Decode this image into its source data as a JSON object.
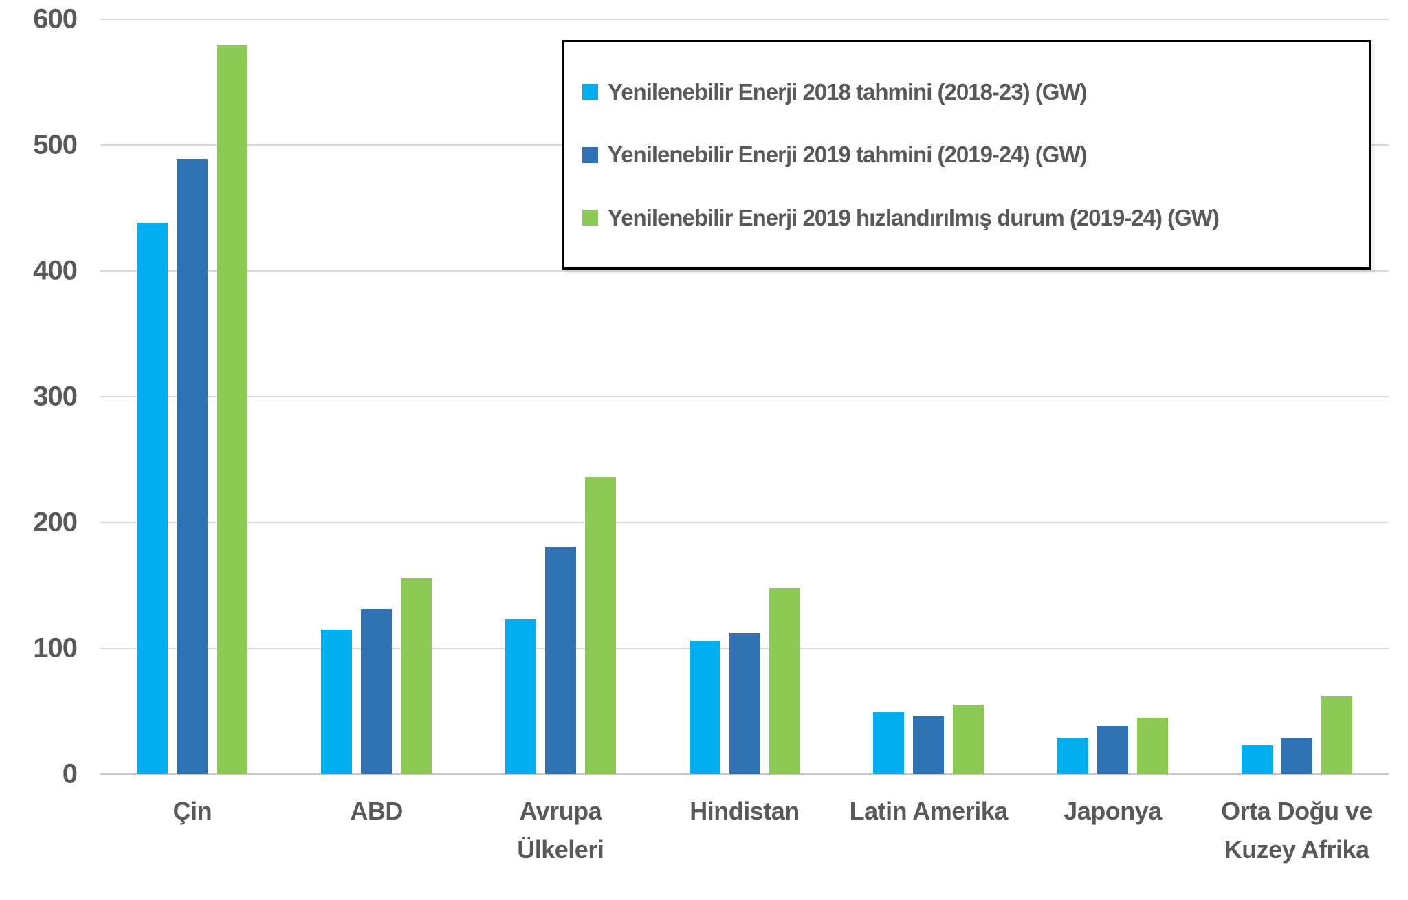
{
  "chart_data": {
    "type": "bar",
    "title": "",
    "xlabel": "",
    "ylabel": "",
    "categories": [
      "Çin",
      "ABD",
      "Avrupa Ülkeleri",
      "Hindistan",
      "Latin Amerika",
      "Japonya",
      "Orta Doğu ve Kuzey Afrika"
    ],
    "series": [
      {
        "name": "Yenilenebilir Enerji 2018 tahmini (2018-23) (GW)",
        "color": "#00AEEF",
        "values": [
          438,
          115,
          123,
          106,
          49,
          29,
          23
        ]
      },
      {
        "name": "Yenilenebilir Enerji 2019 tahmini (2019-24) (GW)",
        "color": "#2E74B5",
        "values": [
          489,
          131,
          181,
          112,
          46,
          38,
          29
        ]
      },
      {
        "name": "Yenilenebilir Enerji 2019 hızlandırılmış durum (2019-24) (GW)",
        "color": "#8CC955",
        "values": [
          580,
          156,
          236,
          148,
          55,
          45,
          62
        ]
      }
    ],
    "ylim": [
      0,
      600
    ],
    "ytick_step": 100,
    "ytick_labels": [
      "0",
      "100",
      "200",
      "300",
      "400",
      "500",
      "600"
    ],
    "grid": true,
    "legend_position": "top-right"
  },
  "colors": {
    "background": "#FFFFFF",
    "gridline": "#D9D9D9",
    "zero_line": "#C6C6C6",
    "axis_text": "#595959",
    "legend_border": "#000000"
  }
}
